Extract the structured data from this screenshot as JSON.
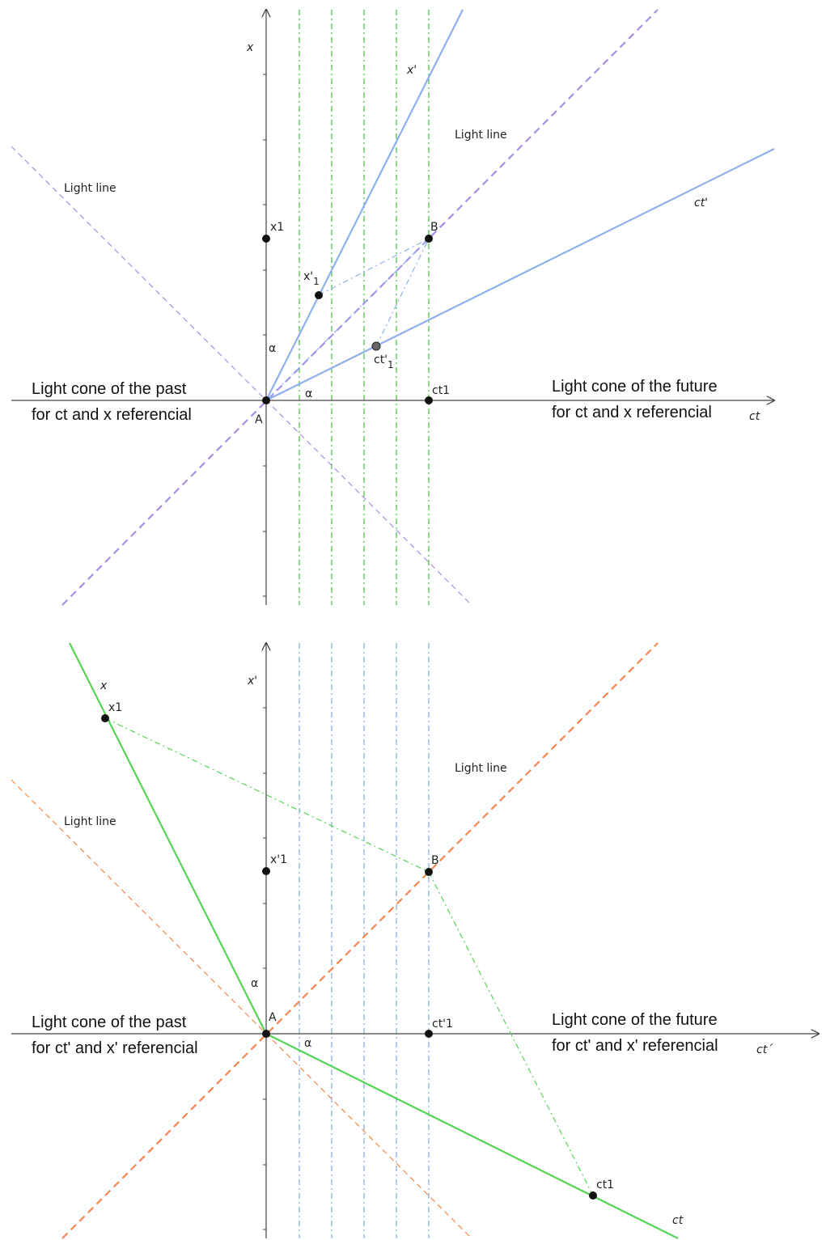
{
  "colors": {
    "axis": "#444444",
    "top_light": "#a98ee6",
    "top_frame": "#8fb0ee",
    "top_grid": "#4dc24d",
    "bottom_light": "#f4884a",
    "bottom_frame": "#55d555",
    "bottom_grid": "#88aee0"
  },
  "panels": [
    {
      "axis_h_label": "ct",
      "axis_v_label": "x",
      "tilted_axis_1_label": "x'",
      "tilted_axis_2_label": "ct'",
      "light_line_label_1": "Light line",
      "light_line_label_2": "Light line",
      "origin_label": "A",
      "event_label": "B",
      "point_v_label": "x1",
      "point_h_label": "ct1",
      "point_tilted_1_label": "x'",
      "point_tilted_1_sub": "1",
      "point_tilted_2_label": "ct'",
      "point_tilted_2_sub": "1",
      "angle_label_1": "α",
      "angle_label_2": "α",
      "past_cone_line_1": "Light cone of the past",
      "past_cone_line_2": "for ct and x referencial",
      "future_cone_line_1": "Light cone of the future",
      "future_cone_line_2": "for ct and x referencial"
    },
    {
      "axis_h_label": "ct´",
      "axis_v_label": "x'",
      "tilted_axis_1_label": "x",
      "tilted_axis_2_label": "ct",
      "light_line_label_1": "Light line",
      "light_line_label_2": "Light line",
      "origin_label": "A",
      "event_label": "B",
      "point_v_label": "x'1",
      "point_h_label": "ct'1",
      "point_tilted_1_label": "x1",
      "point_tilted_2_label": "ct1",
      "angle_label_1": "α",
      "angle_label_2": "α",
      "past_cone_line_1": "Light cone of the past",
      "past_cone_line_2": "for ct' and x' referencial",
      "future_cone_line_1": "Light cone of the future",
      "future_cone_line_2": "for ct' and x' referencial"
    }
  ]
}
